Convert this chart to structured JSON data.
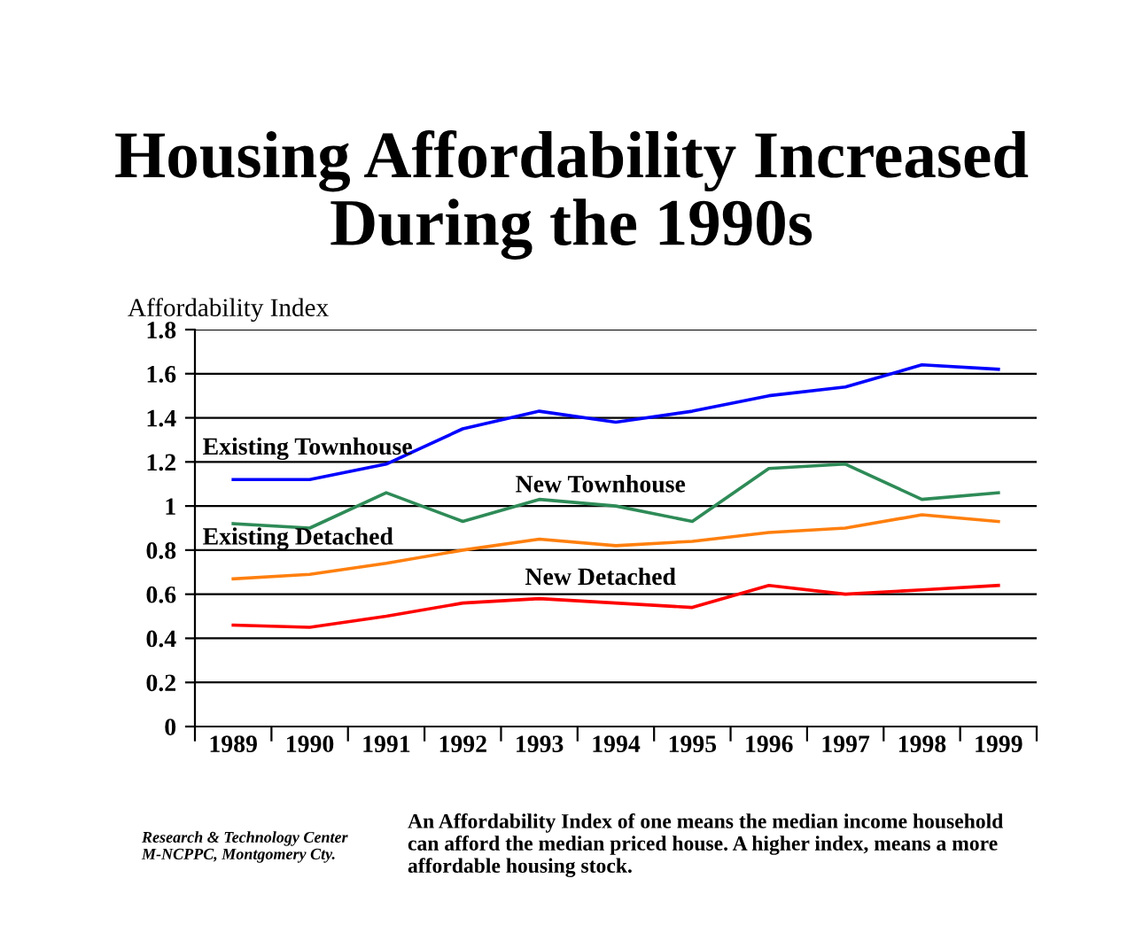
{
  "chart_data": {
    "type": "line",
    "title": "Housing Affordability Increased\nDuring the 1990s",
    "ylabel": "Affordability Index",
    "categories": [
      "1989",
      "1990",
      "1991",
      "1992",
      "1993",
      "1994",
      "1995",
      "1996",
      "1997",
      "1998",
      "1999"
    ],
    "series": [
      {
        "name": "Existing Townhouse",
        "color": "#0000ff",
        "values": [
          1.12,
          1.12,
          1.19,
          1.35,
          1.43,
          1.38,
          1.43,
          1.5,
          1.54,
          1.64,
          1.62
        ]
      },
      {
        "name": "New Townhouse",
        "color": "#2e8b57",
        "values": [
          0.92,
          0.9,
          1.06,
          0.93,
          1.03,
          1.0,
          0.93,
          1.17,
          1.19,
          1.03,
          1.06
        ]
      },
      {
        "name": "Existing Detached",
        "color": "#ff7f0e",
        "values": [
          0.67,
          0.69,
          0.74,
          0.8,
          0.85,
          0.82,
          0.84,
          0.88,
          0.9,
          0.96,
          0.93
        ]
      },
      {
        "name": "New Detached",
        "color": "#ff0000",
        "values": [
          0.46,
          0.45,
          0.5,
          0.56,
          0.58,
          0.56,
          0.54,
          0.64,
          0.6,
          0.62,
          0.64
        ]
      }
    ],
    "ylim": [
      0,
      1.8
    ],
    "yticks": [
      0,
      0.2,
      0.4,
      0.6,
      0.8,
      1,
      1.2,
      1.4,
      1.6,
      1.8
    ],
    "grid": "y",
    "legend": false,
    "marker": "none",
    "line_style": "solid",
    "annotations": [
      "Research & Technology Center\nM-NCPPC, Montgomery Cty.",
      "An Affordability Index of one means the median income household\ncan afford the median priced house. A higher index, means a more\naffordable housing stock."
    ]
  }
}
